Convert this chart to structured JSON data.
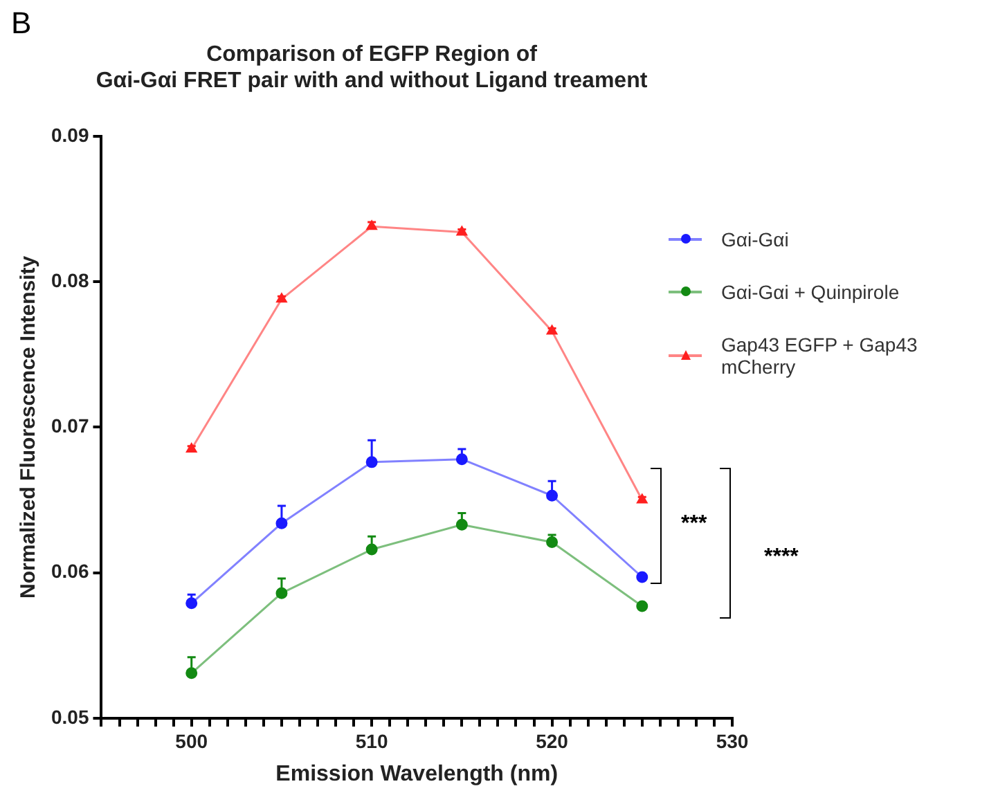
{
  "chart_data": {
    "type": "line",
    "title": "Comparison of EGFP Region of\nGαi-Gαi FRET pair with and without Ligand treament",
    "xlabel": "Emission Wavelength (nm)",
    "ylabel": "Normalized Fluorescence Intensity",
    "x": [
      500,
      505,
      510,
      515,
      520,
      525
    ],
    "xlim": [
      495,
      530
    ],
    "xticks": [
      {
        "value": 495,
        "label": null
      },
      {
        "value": 496,
        "label": null
      },
      {
        "value": 497,
        "label": null
      },
      {
        "value": 498,
        "label": null
      },
      {
        "value": 499,
        "label": null
      },
      500,
      {
        "value": 501,
        "label": null
      },
      {
        "value": 502,
        "label": null
      },
      {
        "value": 503,
        "label": null
      },
      {
        "value": 504,
        "label": null
      },
      {
        "value": 505,
        "label": null
      },
      {
        "value": 506,
        "label": null
      },
      {
        "value": 507,
        "label": null
      },
      {
        "value": 508,
        "label": null
      },
      {
        "value": 509,
        "label": null
      },
      510,
      {
        "value": 511,
        "label": null
      },
      {
        "value": 512,
        "label": null
      },
      {
        "value": 513,
        "label": null
      },
      {
        "value": 514,
        "label": null
      },
      {
        "value": 515,
        "label": null
      },
      {
        "value": 516,
        "label": null
      },
      {
        "value": 517,
        "label": null
      },
      {
        "value": 518,
        "label": null
      },
      {
        "value": 519,
        "label": null
      },
      520,
      {
        "value": 521,
        "label": null
      },
      {
        "value": 522,
        "label": null
      },
      {
        "value": 523,
        "label": null
      },
      {
        "value": 524,
        "label": null
      },
      {
        "value": 525,
        "label": null
      },
      {
        "value": 526,
        "label": null
      },
      {
        "value": 527,
        "label": null
      },
      {
        "value": 528,
        "label": null
      },
      {
        "value": 529,
        "label": null
      },
      530
    ],
    "ylim": [
      0.05,
      0.09
    ],
    "yticks": [
      0.05,
      0.06,
      0.07,
      0.08,
      0.09
    ],
    "grid": false,
    "legend": "right",
    "line_style": "solid",
    "series": [
      {
        "name": "Gαi-Gαi",
        "color": "#1a1aff",
        "marker": "circle",
        "values": [
          0.0579,
          0.0634,
          0.0676,
          0.0678,
          0.0653,
          0.0597
        ],
        "errors": [
          [
            0.0579,
            0.0585
          ],
          [
            0.0634,
            0.0646
          ],
          [
            0.0676,
            0.0691
          ],
          [
            0.0678,
            0.0685
          ],
          [
            0.0653,
            0.0663
          ],
          [
            0.0597,
            0.0599
          ]
        ]
      },
      {
        "name": "Gαi-Gαi + Quinpirole",
        "color": "#138a13",
        "marker": "circle",
        "values": [
          0.0531,
          0.0586,
          0.0616,
          0.0633,
          0.0621,
          0.0577
        ],
        "errors": [
          [
            0.0531,
            0.0542
          ],
          [
            0.0586,
            0.0596
          ],
          [
            0.0616,
            0.0625
          ],
          [
            0.0633,
            0.0641
          ],
          [
            0.0621,
            0.0626
          ],
          [
            0.0577,
            0.0579
          ]
        ]
      },
      {
        "name": "Gap43 EGFP + Gap43 mCherry",
        "color": "#ff2020",
        "marker": "triangle",
        "values": [
          0.0685,
          0.0788,
          0.0838,
          0.0834,
          0.0766,
          0.065
        ],
        "errors": [
          [
            0.0685,
            0.0687
          ],
          [
            0.0788,
            0.079
          ],
          [
            0.0838,
            0.0841
          ],
          [
            0.0834,
            0.0836
          ],
          [
            0.0766,
            0.0768
          ],
          [
            0.065,
            0.0652
          ]
        ]
      }
    ],
    "annotations": [
      "B",
      "***",
      "****"
    ]
  }
}
